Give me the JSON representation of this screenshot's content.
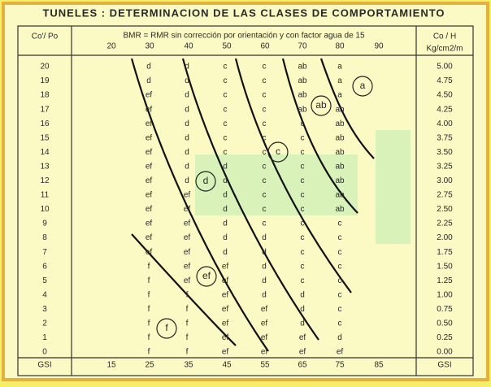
{
  "title": "TUNELES : DETERMINACION DE LAS CLASES DE COMPORTAMIENTO",
  "header": {
    "left": "Co'/ Po",
    "bmr": "BMR  =  RMR sin corrección por orientación y con factor agua de 15",
    "bmr_values": [
      "20",
      "30",
      "40",
      "50",
      "60",
      "70",
      "80",
      "90"
    ],
    "right": [
      "Co / H",
      "Kg/cm2/m"
    ]
  },
  "rows": [
    {
      "po": "20",
      "cells": [
        "d",
        "d",
        "c",
        "c",
        "ab",
        "a"
      ],
      "h": "5.00"
    },
    {
      "po": "19",
      "cells": [
        "d",
        "d",
        "c",
        "c",
        "ab",
        "a"
      ],
      "h": "4.75"
    },
    {
      "po": "18",
      "cells": [
        "ef",
        "d",
        "c",
        "c",
        "ab",
        "a"
      ],
      "h": "4.50"
    },
    {
      "po": "17",
      "cells": [
        "ef",
        "d",
        "c",
        "c",
        "ab",
        "ab"
      ],
      "h": "4.25"
    },
    {
      "po": "16",
      "cells": [
        "ef",
        "d",
        "c",
        "c",
        "c",
        "ab"
      ],
      "h": "4.00"
    },
    {
      "po": "15",
      "cells": [
        "ef",
        "d",
        "c",
        "c",
        "c",
        "ab"
      ],
      "h": "3.75"
    },
    {
      "po": "14",
      "cells": [
        "ef",
        "d",
        "c",
        "c",
        "c",
        "ab"
      ],
      "h": "3.50"
    },
    {
      "po": "13",
      "cells": [
        "ef",
        "d",
        "d",
        "c",
        "c",
        "ab"
      ],
      "h": "3.25"
    },
    {
      "po": "12",
      "cells": [
        "ef",
        "d",
        "d",
        "c",
        "c",
        "ab"
      ],
      "h": "3.00"
    },
    {
      "po": "11",
      "cells": [
        "ef",
        "ef",
        "d",
        "c",
        "c",
        "ab"
      ],
      "h": "2.75"
    },
    {
      "po": "10",
      "cells": [
        "ef",
        "ef",
        "d",
        "c",
        "c",
        "ab"
      ],
      "h": "2.50"
    },
    {
      "po": "9",
      "cells": [
        "ef",
        "ef",
        "d",
        "c",
        "c",
        "c"
      ],
      "h": "2.25"
    },
    {
      "po": "8",
      "cells": [
        "ef",
        "ef",
        "d",
        "d",
        "c",
        "c"
      ],
      "h": "2.00"
    },
    {
      "po": "7",
      "cells": [
        "ef",
        "ef",
        "d",
        "d",
        "c",
        "c"
      ],
      "h": "1.75"
    },
    {
      "po": "6",
      "cells": [
        "f",
        "ef",
        "ef",
        "d",
        "c",
        "c"
      ],
      "h": "1.50"
    },
    {
      "po": "5",
      "cells": [
        "f",
        "ef",
        "ef",
        "d",
        "c",
        "c"
      ],
      "h": "1.25"
    },
    {
      "po": "4",
      "cells": [
        "f",
        "f",
        "ef",
        "d",
        "d",
        "c"
      ],
      "h": "1.00"
    },
    {
      "po": "3",
      "cells": [
        "f",
        "f",
        "ef",
        "ef",
        "d",
        "c"
      ],
      "h": "0.75"
    },
    {
      "po": "2",
      "cells": [
        "f",
        "f",
        "ef",
        "ef",
        "d",
        "c"
      ],
      "h": "0.50"
    },
    {
      "po": "1",
      "cells": [
        "f",
        "f",
        "ef",
        "ef",
        "ef",
        "d"
      ],
      "h": "0.25"
    },
    {
      "po": "0",
      "cells": [
        "f",
        "f",
        "ef",
        "ef",
        "ef",
        "ef"
      ],
      "h": "0.00"
    }
  ],
  "footer": {
    "left": "GSI",
    "values": [
      "15",
      "25",
      "35",
      "45",
      "55",
      "65",
      "75",
      "85"
    ],
    "right": "GSI"
  },
  "zones": [
    "a",
    "ab",
    "c",
    "d",
    "ef",
    "f"
  ]
}
